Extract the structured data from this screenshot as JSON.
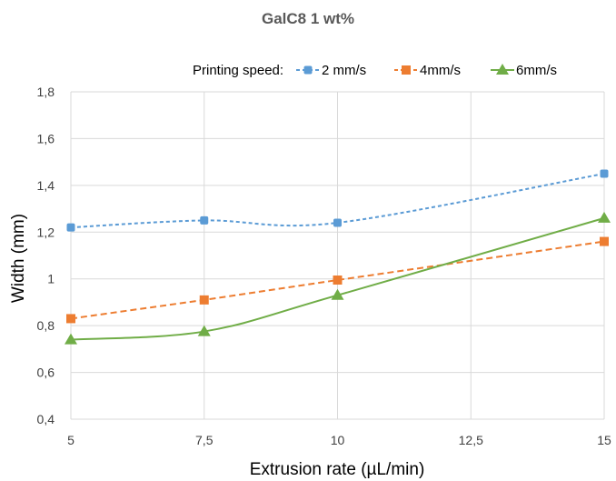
{
  "chart_data": {
    "type": "line",
    "title": "GalC8 1 wt%",
    "xlabel": "Extrusion rate (µL/min)",
    "ylabel": "Width (mm)",
    "legend_title": "Printing speed:",
    "legend_position": "top-right",
    "x": [
      5,
      7.5,
      10,
      15
    ],
    "x_ticks": [
      5,
      7.5,
      10,
      12.5,
      15
    ],
    "x_tick_labels": [
      "5",
      "7,5",
      "10",
      "12,5",
      "15"
    ],
    "xlim": [
      5,
      15
    ],
    "ylim": [
      0.4,
      1.8
    ],
    "y_ticks": [
      0.4,
      0.6,
      0.8,
      1.0,
      1.2,
      1.4,
      1.6,
      1.8
    ],
    "y_tick_labels": [
      "0,4",
      "0,6",
      "0,8",
      "1",
      "1,2",
      "1,4",
      "1,6",
      "1,8"
    ],
    "grid": true,
    "series": [
      {
        "name": "2 mm/s",
        "values": [
          1.22,
          1.25,
          1.24,
          1.45
        ],
        "color": "#5b9bd5",
        "marker": "diamond",
        "dashed": true,
        "smooth": true
      },
      {
        "name": "4mm/s",
        "values": [
          0.83,
          0.91,
          0.995,
          1.16
        ],
        "color": "#ed7d31",
        "marker": "square",
        "dashed": true,
        "smooth": false
      },
      {
        "name": "6mm/s",
        "values": [
          0.74,
          0.775,
          0.93,
          1.26
        ],
        "color": "#70ad47",
        "marker": "triangle",
        "dashed": false,
        "smooth": true
      }
    ]
  }
}
